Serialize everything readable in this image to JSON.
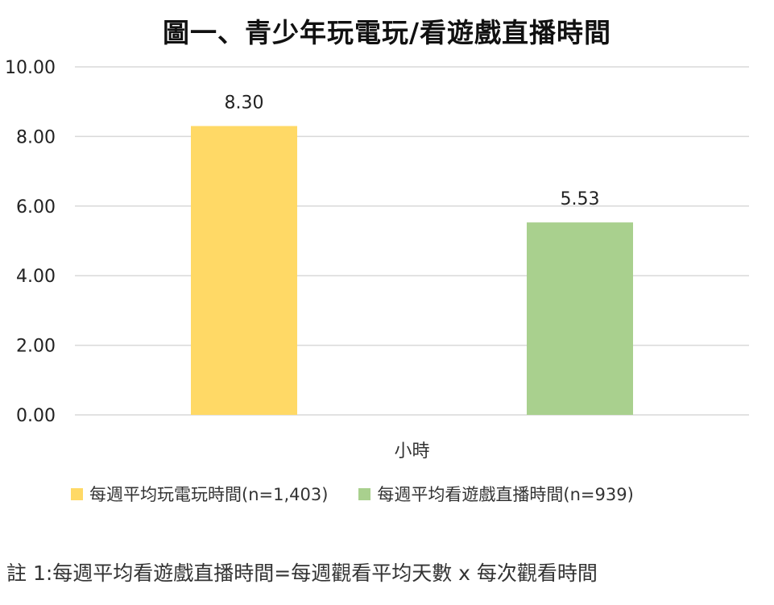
{
  "chart_data": {
    "type": "bar",
    "title": "圖一、青少年玩電玩/看遊戲直播時間",
    "categories": [
      "小時"
    ],
    "series": [
      {
        "name": "每週平均玩電玩時間(n=1,403)",
        "values": [
          8.3
        ],
        "color": "#FFD966",
        "label": "8.30"
      },
      {
        "name": "每週平均看遊戲直播時間(n=939)",
        "values": [
          5.53
        ],
        "color": "#A9D08E",
        "label": "5.53"
      }
    ],
    "ylim": [
      0,
      10
    ],
    "yticks": [
      "0.00",
      "2.00",
      "4.00",
      "6.00",
      "8.00",
      "10.00"
    ],
    "grid": true,
    "legend_position": "bottom-left"
  },
  "footnote": "註 1:每週平均看遊戲直播時間=每週觀看平均天數 x  每次觀看時間"
}
